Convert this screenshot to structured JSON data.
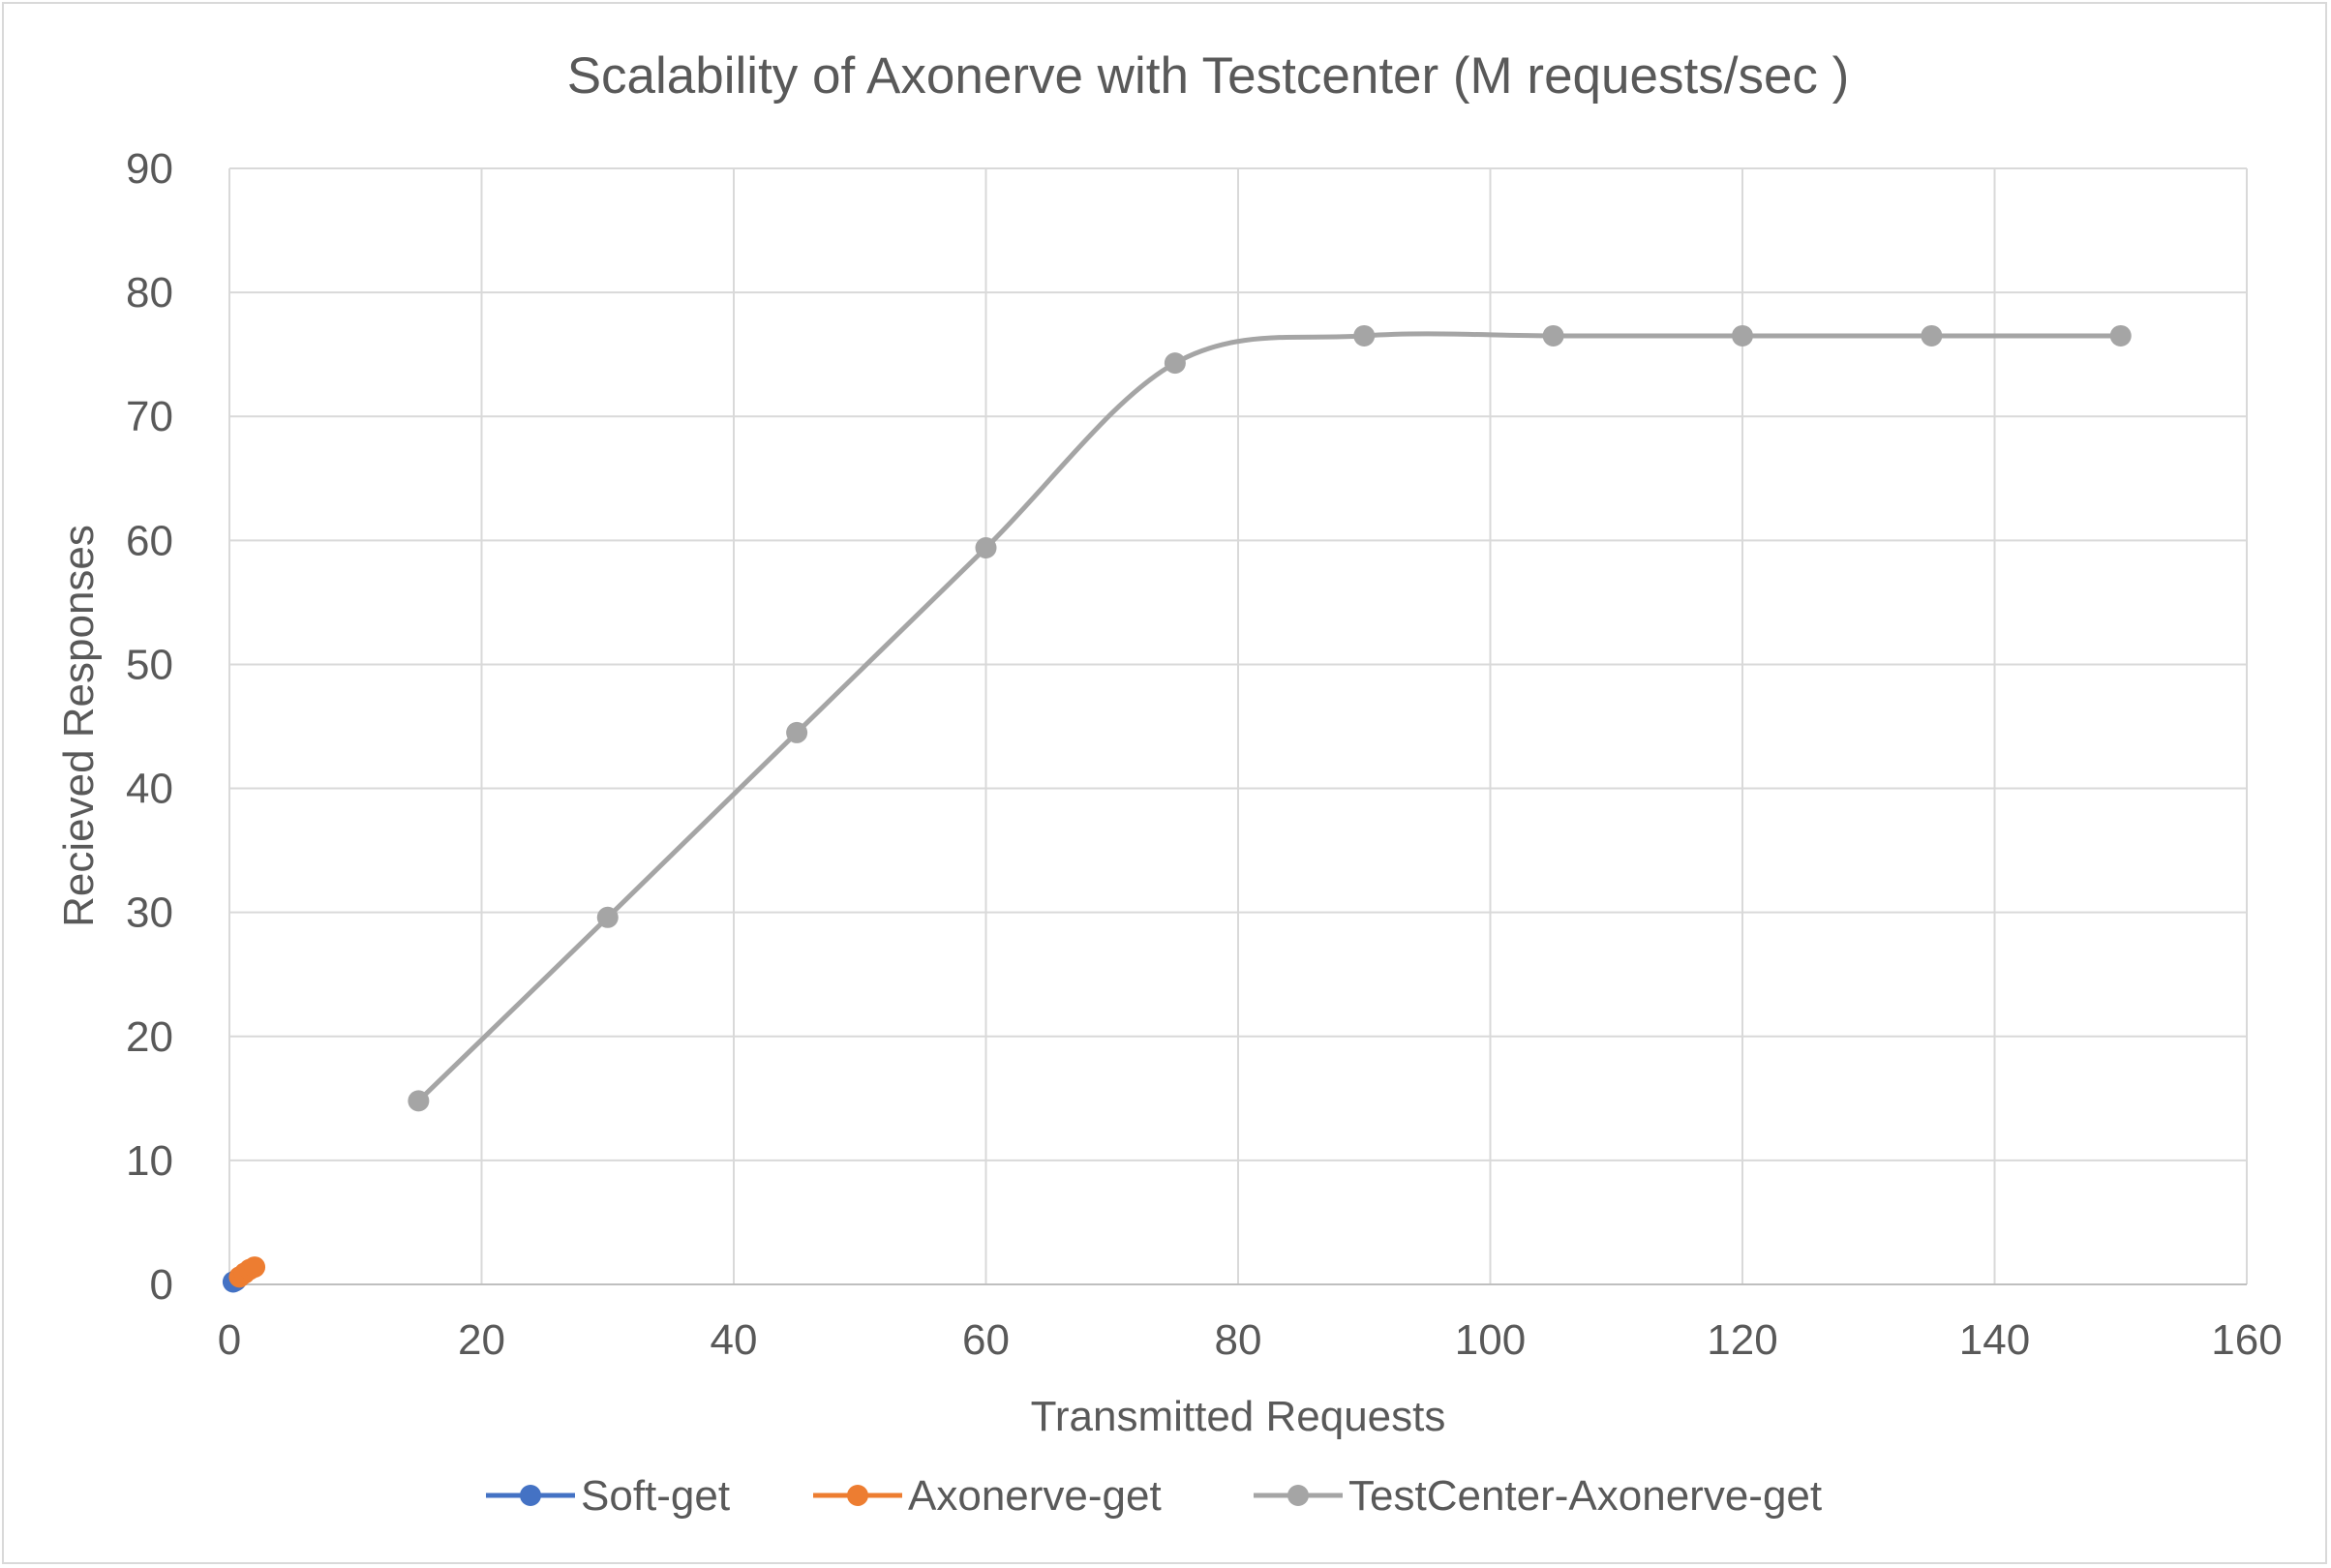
{
  "chart_data": {
    "type": "scatter",
    "title": "Scalability of Axonerve with Testcenter (M requests/sec )",
    "xlabel": "Transmitted Requests",
    "ylabel": "Recieved Responses",
    "xlim": [
      0,
      160
    ],
    "ylim": [
      0,
      90
    ],
    "xticks": [
      0,
      20,
      40,
      60,
      80,
      100,
      120,
      140,
      160
    ],
    "yticks": [
      0,
      10,
      20,
      30,
      40,
      50,
      60,
      70,
      80,
      90
    ],
    "grid": true,
    "legend_position": "bottom",
    "series": [
      {
        "name": "Soft-get",
        "color": "#4472c4",
        "x": [
          0.3,
          0.5
        ],
        "y": [
          0.2,
          0.3
        ]
      },
      {
        "name": "Axonerve-get",
        "color": "#ed7d31",
        "x": [
          0.8,
          1.2,
          1.6,
          2.0
        ],
        "y": [
          0.6,
          0.9,
          1.2,
          1.4
        ]
      },
      {
        "name": "TestCenter-Axonerve-get",
        "color": "#a5a5a5",
        "x": [
          15,
          30,
          45,
          60,
          75,
          90,
          105,
          120,
          135,
          150
        ],
        "y": [
          14.8,
          29.6,
          44.5,
          59.4,
          74.3,
          76.5,
          76.5,
          76.5,
          76.5,
          76.5
        ]
      }
    ]
  }
}
